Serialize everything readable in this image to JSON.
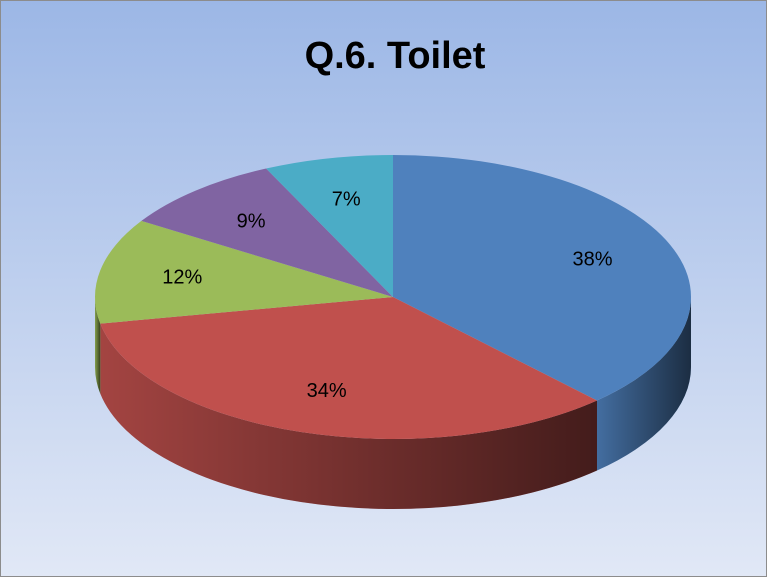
{
  "chart_data": {
    "type": "pie",
    "title": "Q.6. Toilet",
    "values": [
      38,
      34,
      12,
      9,
      7
    ],
    "value_labels": [
      "38%",
      "34%",
      "12%",
      "9%",
      "7%"
    ],
    "colors": [
      "#4f81bd",
      "#c0504d",
      "#9bbb59",
      "#8064a2",
      "#4bacc6"
    ]
  }
}
